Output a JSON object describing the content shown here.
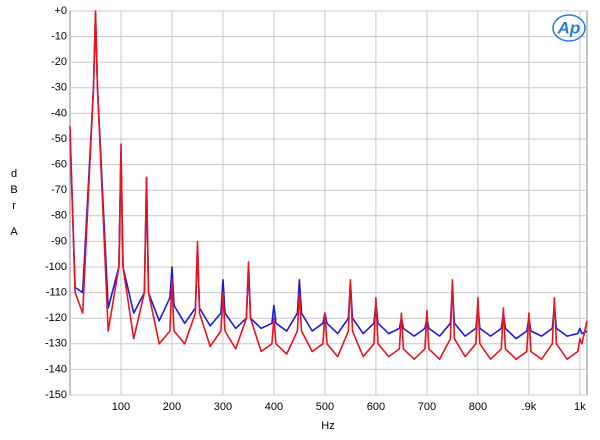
{
  "chart_data": {
    "type": "line",
    "xlabel": "Hz",
    "ylabel": "dBr",
    "ylabel_weighting": "A",
    "logo": "Ap",
    "xlim": [
      0,
      1014
    ],
    "ylim": [
      -150,
      0
    ],
    "grid": true,
    "xticks": [
      100,
      200,
      300,
      400,
      500,
      600,
      700,
      800,
      {
        "value": 900,
        "label": ".9k"
      },
      {
        "value": 1000,
        "label": "1k"
      }
    ],
    "yticks": [
      {
        "value": 0,
        "label": "+0"
      },
      -10,
      -20,
      -30,
      -40,
      -50,
      -60,
      -70,
      -80,
      -90,
      -100,
      -110,
      -120,
      -130,
      -140,
      -150
    ],
    "x": [
      0,
      10,
      25,
      46,
      50,
      54,
      75,
      96,
      100,
      104,
      125,
      146,
      150,
      154,
      175,
      196,
      200,
      204,
      225,
      246,
      250,
      254,
      275,
      296,
      300,
      304,
      325,
      346,
      350,
      354,
      375,
      396,
      400,
      404,
      425,
      446,
      450,
      454,
      475,
      496,
      500,
      504,
      525,
      546,
      550,
      554,
      575,
      596,
      600,
      604,
      625,
      646,
      650,
      654,
      675,
      696,
      700,
      704,
      725,
      746,
      750,
      754,
      775,
      796,
      800,
      804,
      825,
      846,
      850,
      854,
      875,
      896,
      900,
      904,
      925,
      946,
      950,
      954,
      975,
      996,
      1000,
      1004,
      1014
    ],
    "series": [
      {
        "color": "#1a1adc",
        "values": [
          -48,
          -108,
          -110,
          -30,
          -1,
          -30,
          -116,
          -100,
          -55,
          -100,
          -118,
          -110,
          -65,
          -110,
          -121,
          -112,
          -100,
          -115,
          -122,
          -116,
          -92,
          -116,
          -123,
          -118,
          -105,
          -118,
          -124,
          -120,
          -100,
          -120,
          -124,
          -122,
          -115,
          -122,
          -125,
          -118,
          -105,
          -118,
          -125,
          -122,
          -118,
          -122,
          -126,
          -120,
          -106,
          -120,
          -126,
          -122,
          -114,
          -122,
          -126,
          -124,
          -120,
          -124,
          -127,
          -124,
          -120,
          -124,
          -127,
          -122,
          -108,
          -122,
          -127,
          -124,
          -115,
          -124,
          -127,
          -124,
          -118,
          -124,
          -128,
          -125,
          -120,
          -125,
          -127,
          -124,
          -115,
          -124,
          -127,
          -126,
          -124,
          -126,
          -125
        ]
      },
      {
        "color": "#e8141e",
        "values": [
          -45,
          -110,
          -118,
          -30,
          0,
          -30,
          -125,
          -100,
          -52,
          -100,
          -128,
          -110,
          -65,
          -110,
          -130,
          -125,
          -105,
          -125,
          -130,
          -118,
          -90,
          -118,
          -131,
          -125,
          -110,
          -125,
          -132,
          -120,
          -98,
          -120,
          -133,
          -130,
          -120,
          -130,
          -134,
          -125,
          -110,
          -125,
          -133,
          -130,
          -118,
          -130,
          -135,
          -125,
          -105,
          -125,
          -135,
          -130,
          -112,
          -130,
          -135,
          -132,
          -118,
          -132,
          -136,
          -132,
          -117,
          -132,
          -136,
          -128,
          -105,
          -128,
          -135,
          -130,
          -112,
          -130,
          -136,
          -132,
          -116,
          -132,
          -136,
          -133,
          -118,
          -133,
          -136,
          -130,
          -112,
          -130,
          -136,
          -133,
          -128,
          -130,
          -121
        ]
      }
    ]
  }
}
